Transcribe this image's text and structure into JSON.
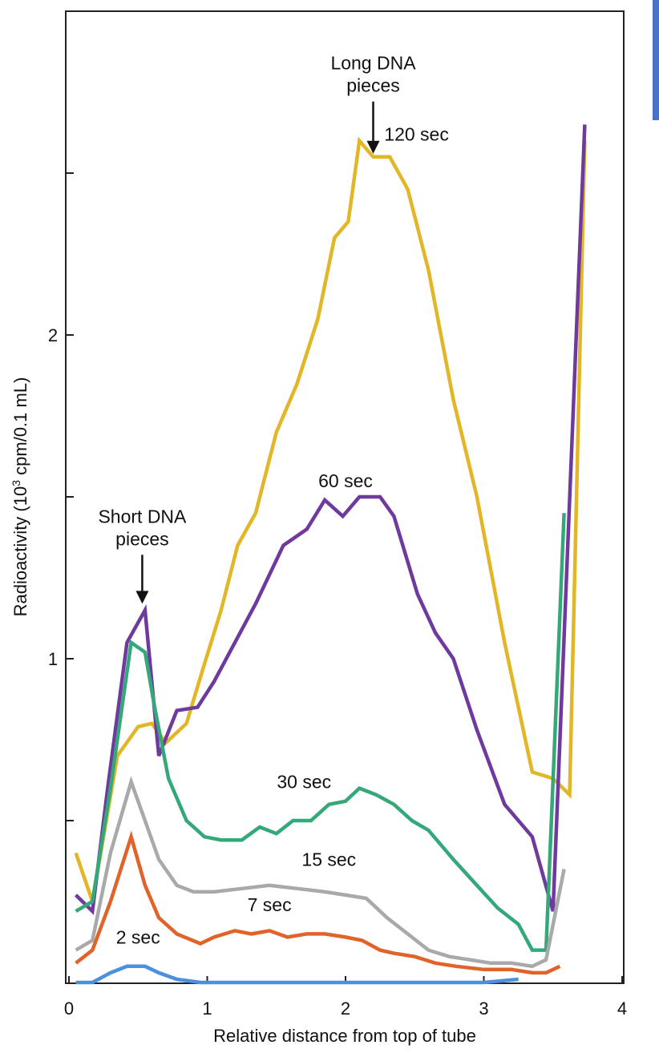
{
  "accent_color": "#4a73c8",
  "chart_data": {
    "type": "line",
    "title": "",
    "xlabel": "Relative distance from top of tube",
    "ylabel_parts": {
      "pre": "Radioactivity (10",
      "sup": "3",
      "post": " cpm/0.1 mL)"
    },
    "xlim": [
      0,
      4
    ],
    "ylim": [
      0,
      3
    ],
    "xticks": [
      0,
      1,
      2,
      3,
      4
    ],
    "yticks_labeled": [
      1,
      2
    ],
    "yticks_minor": [
      0.5,
      1.5,
      2.5
    ],
    "series": [
      {
        "name": "120 sec",
        "color": "#e2b626",
        "x": [
          0.05,
          0.17,
          0.35,
          0.5,
          0.6,
          0.7,
          0.85,
          0.97,
          1.1,
          1.22,
          1.35,
          1.5,
          1.65,
          1.8,
          1.92,
          2.02,
          2.1,
          2.2,
          2.32,
          2.45,
          2.6,
          2.78,
          2.95,
          3.15,
          3.35,
          3.5,
          3.62,
          3.73
        ],
        "y": [
          0.4,
          0.25,
          0.7,
          0.79,
          0.8,
          0.74,
          0.8,
          0.97,
          1.15,
          1.35,
          1.45,
          1.7,
          1.85,
          2.05,
          2.3,
          2.35,
          2.6,
          2.55,
          2.55,
          2.45,
          2.2,
          1.8,
          1.5,
          1.05,
          0.65,
          0.63,
          0.58,
          2.6
        ]
      },
      {
        "name": "60 sec",
        "color": "#6f3a9e",
        "x": [
          0.05,
          0.17,
          0.28,
          0.42,
          0.55,
          0.65,
          0.78,
          0.93,
          1.05,
          1.2,
          1.35,
          1.55,
          1.72,
          1.85,
          1.98,
          2.1,
          2.25,
          2.35,
          2.52,
          2.65,
          2.78,
          2.95,
          3.15,
          3.35,
          3.5,
          3.73
        ],
        "y": [
          0.27,
          0.22,
          0.6,
          1.05,
          1.15,
          0.7,
          0.84,
          0.85,
          0.93,
          1.05,
          1.17,
          1.35,
          1.4,
          1.49,
          1.44,
          1.5,
          1.5,
          1.44,
          1.2,
          1.08,
          1.0,
          0.78,
          0.55,
          0.45,
          0.22,
          2.65
        ]
      },
      {
        "name": "30 sec",
        "color": "#35a87a",
        "x": [
          0.05,
          0.17,
          0.3,
          0.45,
          0.55,
          0.62,
          0.72,
          0.85,
          0.98,
          1.1,
          1.25,
          1.38,
          1.5,
          1.62,
          1.75,
          1.88,
          2.0,
          2.1,
          2.22,
          2.35,
          2.48,
          2.6,
          2.78,
          2.95,
          3.1,
          3.25,
          3.35,
          3.45,
          3.58
        ],
        "y": [
          0.22,
          0.25,
          0.6,
          1.05,
          1.02,
          0.85,
          0.63,
          0.5,
          0.45,
          0.44,
          0.44,
          0.48,
          0.46,
          0.5,
          0.5,
          0.55,
          0.56,
          0.6,
          0.58,
          0.55,
          0.5,
          0.47,
          0.38,
          0.3,
          0.23,
          0.18,
          0.1,
          0.1,
          1.45
        ]
      },
      {
        "name": "15 sec",
        "color": "#a9a9a9",
        "x": [
          0.05,
          0.17,
          0.3,
          0.45,
          0.55,
          0.65,
          0.78,
          0.9,
          1.05,
          1.25,
          1.45,
          1.65,
          1.85,
          2.0,
          2.15,
          2.3,
          2.45,
          2.6,
          2.75,
          2.9,
          3.05,
          3.2,
          3.35,
          3.45,
          3.58
        ],
        "y": [
          0.1,
          0.13,
          0.4,
          0.62,
          0.5,
          0.38,
          0.3,
          0.28,
          0.28,
          0.29,
          0.3,
          0.29,
          0.28,
          0.27,
          0.26,
          0.2,
          0.15,
          0.1,
          0.08,
          0.07,
          0.06,
          0.06,
          0.05,
          0.07,
          0.35
        ]
      },
      {
        "name": "7 sec",
        "color": "#e0632a",
        "x": [
          0.05,
          0.17,
          0.3,
          0.45,
          0.55,
          0.65,
          0.78,
          0.95,
          1.05,
          1.2,
          1.32,
          1.45,
          1.58,
          1.72,
          1.85,
          2.0,
          2.12,
          2.25,
          2.35,
          2.5,
          2.65,
          2.8,
          3.0,
          3.2,
          3.35,
          3.45,
          3.55
        ],
        "y": [
          0.06,
          0.1,
          0.25,
          0.45,
          0.3,
          0.2,
          0.15,
          0.12,
          0.14,
          0.16,
          0.15,
          0.16,
          0.14,
          0.15,
          0.15,
          0.14,
          0.13,
          0.1,
          0.09,
          0.08,
          0.06,
          0.05,
          0.04,
          0.04,
          0.03,
          0.03,
          0.05
        ]
      },
      {
        "name": "2 sec",
        "color": "#4a8fe0",
        "x": [
          0.05,
          0.17,
          0.3,
          0.42,
          0.55,
          0.65,
          0.78,
          0.95,
          1.1,
          1.4,
          1.8,
          2.2,
          2.6,
          3.0,
          3.25
        ],
        "y": [
          0.0,
          0.0,
          0.03,
          0.05,
          0.05,
          0.03,
          0.01,
          0.0,
          0.0,
          0.0,
          0.0,
          0.0,
          0.0,
          0.0,
          0.01
        ]
      }
    ],
    "annotations": [
      {
        "text": "2 sec",
        "x": 0.5,
        "y": 0.12,
        "anchor": "middle"
      },
      {
        "text": "7 sec",
        "x": 1.45,
        "y": 0.22,
        "anchor": "middle"
      },
      {
        "text": "15 sec",
        "x": 1.88,
        "y": 0.36,
        "anchor": "middle"
      },
      {
        "text": "30 sec",
        "x": 1.7,
        "y": 0.6,
        "anchor": "middle"
      },
      {
        "text": "60 sec",
        "x": 2.0,
        "y": 1.53,
        "anchor": "middle"
      },
      {
        "text": "120 sec",
        "x": 2.28,
        "y": 2.6,
        "anchor": "start"
      }
    ],
    "arrows": [
      {
        "lines": [
          "Long DNA",
          "pieces"
        ],
        "x": 2.2,
        "y_text": 2.82,
        "y_tip": 2.56
      },
      {
        "lines": [
          "Short DNA",
          "pieces"
        ],
        "x": 0.53,
        "y_text": 1.42,
        "y_tip": 1.17
      }
    ]
  }
}
